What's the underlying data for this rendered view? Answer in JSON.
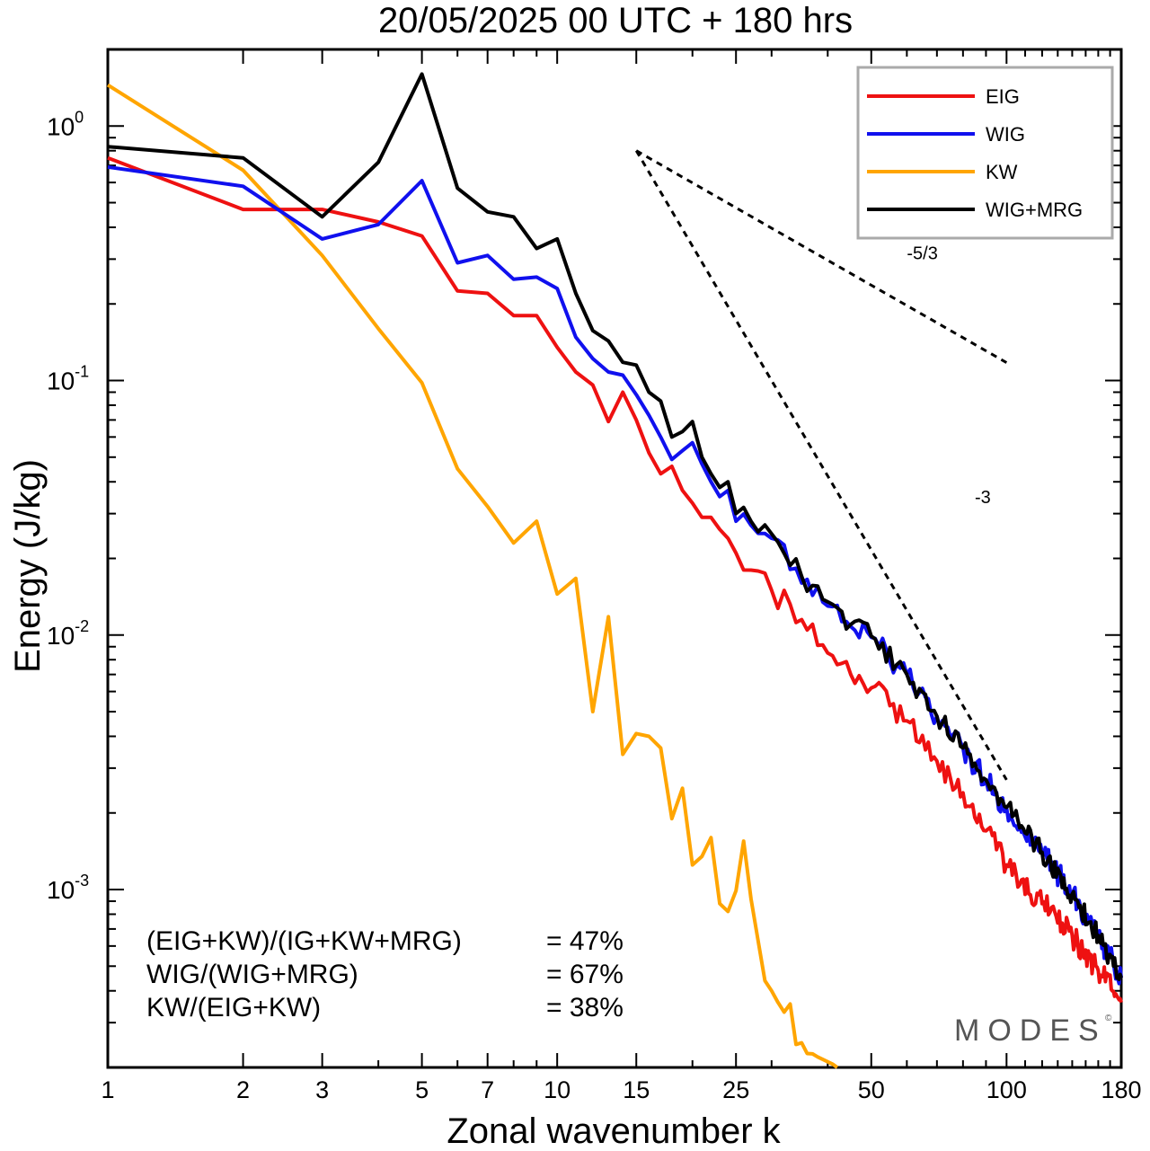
{
  "chart_data": {
    "type": "line",
    "title": "20/05/2025  00 UTC  + 180 hrs",
    "xlabel": "Zonal wavenumber k",
    "ylabel": "Energy (J/kg)",
    "x_scale": "log",
    "y_scale": "log",
    "xlim": [
      1,
      180
    ],
    "ylim": [
      0.0002,
      2
    ],
    "x_ticks": [
      1,
      2,
      3,
      5,
      7,
      10,
      15,
      25,
      50,
      100,
      180
    ],
    "x_tick_labels": [
      "1",
      "2",
      "3",
      "5",
      "7",
      "10",
      "15",
      "25",
      "50",
      "100",
      "180"
    ],
    "y_ticks": [
      {
        "value": 1,
        "base": "10",
        "exp": "0"
      },
      {
        "value": 0.1,
        "base": "10",
        "exp": "-1"
      },
      {
        "value": 0.01,
        "base": "10",
        "exp": "-2"
      },
      {
        "value": 0.001,
        "base": "10",
        "exp": "-3"
      }
    ],
    "legend_position": "top-right",
    "series": [
      {
        "name": "EIG",
        "color": "#ee1111",
        "anchors": [
          [
            1,
            0.75
          ],
          [
            2,
            0.47
          ],
          [
            3,
            0.47
          ],
          [
            4,
            0.42
          ],
          [
            5,
            0.37
          ],
          [
            6,
            0.225
          ],
          [
            7,
            0.22
          ],
          [
            8,
            0.18
          ],
          [
            9,
            0.18
          ],
          [
            10,
            0.135
          ],
          [
            11,
            0.108
          ],
          [
            12,
            0.096
          ],
          [
            13,
            0.069
          ],
          [
            14,
            0.09
          ],
          [
            15,
            0.07
          ],
          [
            16,
            0.052
          ],
          [
            17,
            0.043
          ],
          [
            18,
            0.046
          ],
          [
            19,
            0.037
          ],
          [
            20,
            0.033
          ],
          [
            21,
            0.029
          ],
          [
            22,
            0.029
          ],
          [
            23,
            0.026
          ],
          [
            24,
            0.024
          ],
          [
            25,
            0.021
          ],
          [
            27,
            0.018
          ],
          [
            30,
            0.015
          ],
          [
            35,
            0.0115
          ],
          [
            40,
            0.0085
          ],
          [
            45,
            0.007
          ],
          [
            50,
            0.0062
          ],
          [
            60,
            0.0046
          ],
          [
            70,
            0.0032
          ],
          [
            80,
            0.0024
          ],
          [
            90,
            0.0017
          ],
          [
            100,
            0.00125
          ],
          [
            120,
            0.00088
          ],
          [
            140,
            0.00066
          ],
          [
            160,
            0.00048
          ],
          [
            180,
            0.00036
          ]
        ],
        "noise": 0.05,
        "noise_from": 25
      },
      {
        "name": "WIG",
        "color": "#1010ee",
        "anchors": [
          [
            1,
            0.69
          ],
          [
            2,
            0.58
          ],
          [
            3,
            0.36
          ],
          [
            4,
            0.41
          ],
          [
            5,
            0.61
          ],
          [
            6,
            0.29
          ],
          [
            7,
            0.31
          ],
          [
            8,
            0.25
          ],
          [
            9,
            0.255
          ],
          [
            10,
            0.23
          ],
          [
            11,
            0.148
          ],
          [
            12,
            0.122
          ],
          [
            13,
            0.108
          ],
          [
            14,
            0.105
          ],
          [
            15,
            0.088
          ],
          [
            16,
            0.073
          ],
          [
            17,
            0.06
          ],
          [
            18,
            0.049
          ],
          [
            19,
            0.053
          ],
          [
            20,
            0.057
          ],
          [
            21,
            0.047
          ],
          [
            22,
            0.04
          ],
          [
            23,
            0.035
          ],
          [
            24,
            0.037
          ],
          [
            25,
            0.028
          ],
          [
            27,
            0.027
          ],
          [
            30,
            0.024
          ],
          [
            35,
            0.016
          ],
          [
            40,
            0.013
          ],
          [
            45,
            0.0108
          ],
          [
            50,
            0.0098
          ],
          [
            60,
            0.007
          ],
          [
            70,
            0.0048
          ],
          [
            80,
            0.0036
          ],
          [
            90,
            0.0027
          ],
          [
            100,
            0.0021
          ],
          [
            120,
            0.0014
          ],
          [
            140,
            0.00096
          ],
          [
            160,
            0.00066
          ],
          [
            180,
            0.00045
          ]
        ],
        "noise": 0.05,
        "noise_from": 25
      },
      {
        "name": "KW",
        "color": "#ffa500",
        "anchors": [
          [
            1,
            1.45
          ],
          [
            2,
            0.67
          ],
          [
            3,
            0.31
          ],
          [
            4,
            0.16
          ],
          [
            5,
            0.098
          ],
          [
            6,
            0.045
          ],
          [
            7,
            0.032
          ],
          [
            8,
            0.023
          ],
          [
            9,
            0.028
          ],
          [
            10,
            0.0145
          ],
          [
            11,
            0.0167
          ],
          [
            12,
            0.005
          ],
          [
            13,
            0.0118
          ],
          [
            14,
            0.0034
          ],
          [
            15,
            0.0041
          ],
          [
            16,
            0.004
          ],
          [
            17,
            0.0036
          ],
          [
            18,
            0.0019
          ],
          [
            19,
            0.0025
          ],
          [
            20,
            0.00125
          ],
          [
            21,
            0.00135
          ],
          [
            22,
            0.0016
          ],
          [
            23,
            0.00088
          ],
          [
            24,
            0.00082
          ],
          [
            25,
            0.00099
          ],
          [
            26,
            0.00155
          ],
          [
            27,
            0.00092
          ],
          [
            28,
            0.00063
          ],
          [
            30,
            0.0004
          ],
          [
            32,
            0.00033
          ],
          [
            35,
            0.00025
          ],
          [
            38,
            0.00022
          ],
          [
            42,
            0.0002
          ]
        ],
        "noise": 0.12,
        "noise_from": 28
      },
      {
        "name": "WIG+MRG",
        "color": "#000000",
        "anchors": [
          [
            1,
            0.83
          ],
          [
            2,
            0.75
          ],
          [
            3,
            0.44
          ],
          [
            4,
            0.72
          ],
          [
            5,
            1.6
          ],
          [
            6,
            0.57
          ],
          [
            7,
            0.46
          ],
          [
            8,
            0.44
          ],
          [
            9,
            0.33
          ],
          [
            10,
            0.36
          ],
          [
            11,
            0.22
          ],
          [
            12,
            0.157
          ],
          [
            13,
            0.143
          ],
          [
            14,
            0.118
          ],
          [
            15,
            0.115
          ],
          [
            16,
            0.09
          ],
          [
            17,
            0.083
          ],
          [
            18,
            0.06
          ],
          [
            19,
            0.063
          ],
          [
            20,
            0.069
          ],
          [
            21,
            0.05
          ],
          [
            22,
            0.043
          ],
          [
            23,
            0.038
          ],
          [
            24,
            0.04
          ],
          [
            25,
            0.03
          ],
          [
            27,
            0.028
          ],
          [
            30,
            0.025
          ],
          [
            35,
            0.017
          ],
          [
            40,
            0.0135
          ],
          [
            45,
            0.011
          ],
          [
            50,
            0.0099
          ],
          [
            60,
            0.007
          ],
          [
            70,
            0.0048
          ],
          [
            80,
            0.0036
          ],
          [
            90,
            0.0027
          ],
          [
            100,
            0.0021
          ],
          [
            120,
            0.0014
          ],
          [
            140,
            0.00096
          ],
          [
            160,
            0.00066
          ],
          [
            180,
            0.00045
          ]
        ],
        "noise": 0.04,
        "noise_from": 25
      }
    ],
    "reference_lines": [
      {
        "label": "-5/3",
        "x": [
          15,
          100
        ],
        "y": [
          0.8,
          0.1176
        ],
        "label_at": [
          60,
          0.3
        ]
      },
      {
        "label": "-3",
        "x": [
          15,
          100
        ],
        "y": [
          0.8,
          0.0027
        ],
        "label_at": [
          85,
          0.033
        ]
      }
    ],
    "annotations": [
      {
        "label": "(EIG+KW)/(IG+KW+MRG)",
        "value": "= 47%"
      },
      {
        "label": "WIG/(WIG+MRG)",
        "value": "= 67%"
      },
      {
        "label": "KW/(EIG+KW)",
        "value": "= 38%"
      }
    ],
    "watermark": "MODES",
    "copyright": "©"
  }
}
